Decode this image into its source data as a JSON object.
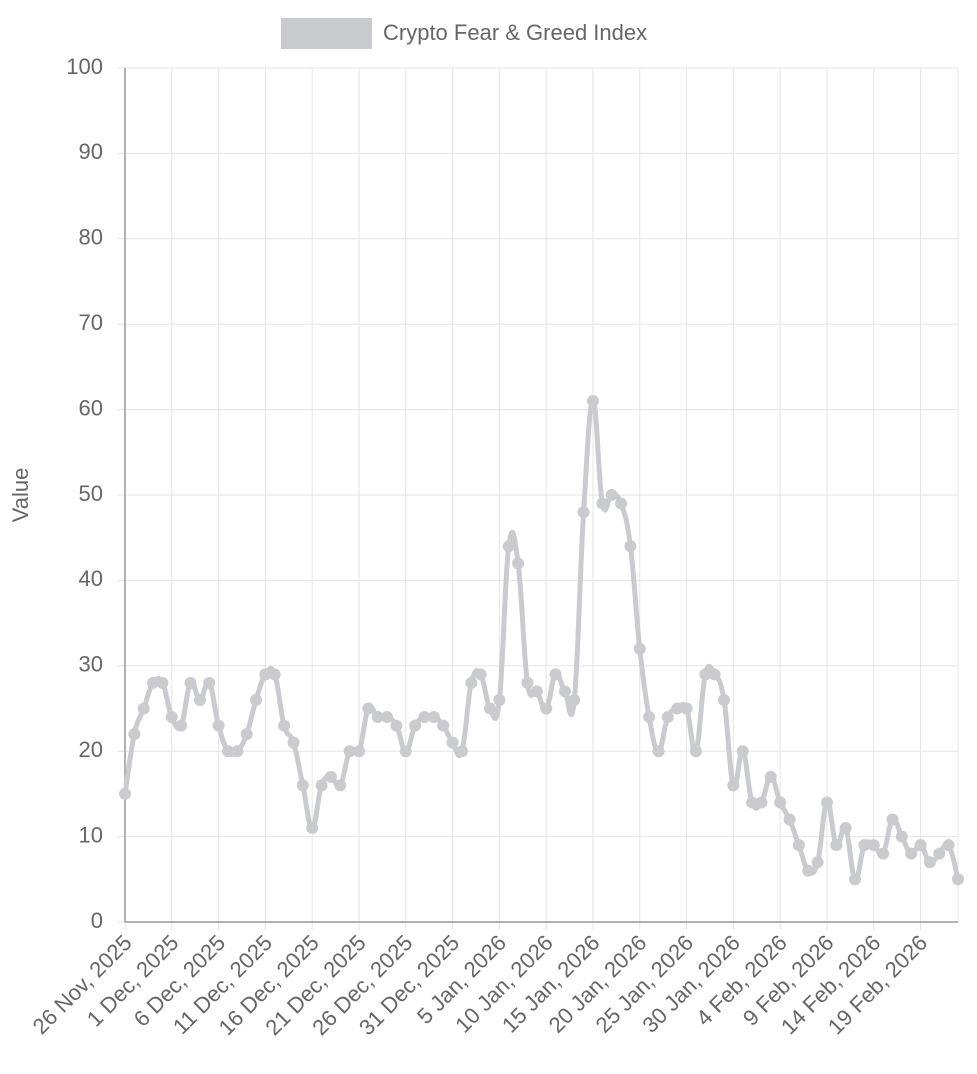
{
  "chart_data": {
    "type": "line",
    "legend": "top",
    "y_label": "Value",
    "categories": [
      "26 Nov, 2025",
      null,
      null,
      null,
      null,
      "1 Dec, 2025",
      null,
      null,
      null,
      null,
      "6 Dec, 2025",
      null,
      null,
      null,
      null,
      "11 Dec, 2025",
      null,
      null,
      null,
      null,
      "16 Dec, 2025",
      null,
      null,
      null,
      null,
      "21 Dec, 2025",
      null,
      null,
      null,
      null,
      "26 Dec, 2025",
      null,
      null,
      null,
      null,
      "31 Dec, 2025",
      null,
      null,
      null,
      null,
      "5 Jan, 2026",
      null,
      null,
      null,
      null,
      "10 Jan, 2026",
      null,
      null,
      null,
      null,
      "15 Jan, 2026",
      null,
      null,
      null,
      null,
      "20 Jan, 2026",
      null,
      null,
      null,
      null,
      "25 Jan, 2026",
      null,
      null,
      null,
      null,
      "30 Jan, 2026",
      null,
      null,
      null,
      null,
      "4 Feb, 2026",
      null,
      null,
      null,
      null,
      "9 Feb, 2026",
      null,
      null,
      null,
      null,
      "14 Feb, 2026",
      null,
      null,
      null,
      null,
      "19 Feb, 2026",
      null,
      null,
      null,
      null
    ],
    "series": [
      {
        "name": "Crypto Fear & Greed Index",
        "color": "#c9cbcf",
        "values": [
          15,
          22,
          25,
          28,
          28,
          24,
          23,
          28,
          26,
          28,
          23,
          20,
          20,
          22,
          26,
          29,
          29,
          23,
          21,
          16,
          11,
          16,
          17,
          16,
          20,
          20,
          25,
          24,
          24,
          23,
          20,
          23,
          24,
          24,
          23,
          21,
          20,
          28,
          29,
          25,
          26,
          44,
          42,
          28,
          27,
          25,
          29,
          27,
          26,
          48,
          61,
          49,
          50,
          49,
          44,
          32,
          24,
          20,
          24,
          25,
          25,
          20,
          29,
          29,
          26,
          16,
          20,
          14,
          14,
          17,
          14,
          12,
          9,
          6,
          7,
          14,
          9,
          11,
          5,
          9,
          9,
          8,
          12,
          10,
          8,
          9,
          7,
          8,
          9,
          5
        ]
      }
    ],
    "ylim": [
      0,
      100
    ],
    "yticks": [
      0,
      10,
      20,
      30,
      40,
      50,
      60,
      70,
      80,
      90,
      100
    ],
    "grid": true
  }
}
